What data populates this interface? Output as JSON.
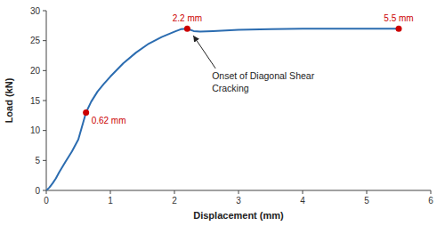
{
  "chart_data": {
    "type": "line",
    "xlabel": "Displacement (mm)",
    "ylabel": "Load (kN)",
    "xlim": [
      0,
      6
    ],
    "ylim": [
      0,
      30
    ],
    "xticks": [
      0,
      1,
      2,
      3,
      4,
      5,
      6
    ],
    "yticks": [
      0,
      5,
      10,
      15,
      20,
      25,
      30
    ],
    "color": "#2b6cb0",
    "x": [
      0.0,
      0.05,
      0.1,
      0.15,
      0.2,
      0.3,
      0.4,
      0.5,
      0.62,
      0.7,
      0.8,
      0.9,
      1.0,
      1.2,
      1.4,
      1.6,
      1.8,
      2.0,
      2.1,
      2.2,
      2.3,
      2.4,
      2.6,
      2.8,
      3.0,
      3.5,
      4.0,
      4.5,
      5.0,
      5.5
    ],
    "values": [
      0.0,
      0.5,
      1.2,
      2.0,
      3.0,
      4.8,
      6.5,
      8.5,
      13.0,
      14.8,
      16.5,
      17.8,
      19.0,
      21.2,
      23.0,
      24.5,
      25.6,
      26.5,
      26.9,
      27.0,
      26.6,
      26.5,
      26.6,
      26.7,
      26.8,
      26.9,
      27.0,
      27.0,
      27.0,
      27.0
    ],
    "annotations": [
      {
        "x": 0.62,
        "y": 13.0,
        "label": "0.62 mm",
        "color": "#cc0000"
      },
      {
        "x": 2.2,
        "y": 27.0,
        "label": "2.2 mm",
        "color": "#cc0000"
      },
      {
        "x": 5.5,
        "y": 27.0,
        "label": "5.5 mm",
        "color": "#cc0000"
      }
    ],
    "callouts": [
      {
        "text": "Onset of Diagonal Shear\nCracking",
        "x": 2.28,
        "y": 26.3
      }
    ]
  }
}
